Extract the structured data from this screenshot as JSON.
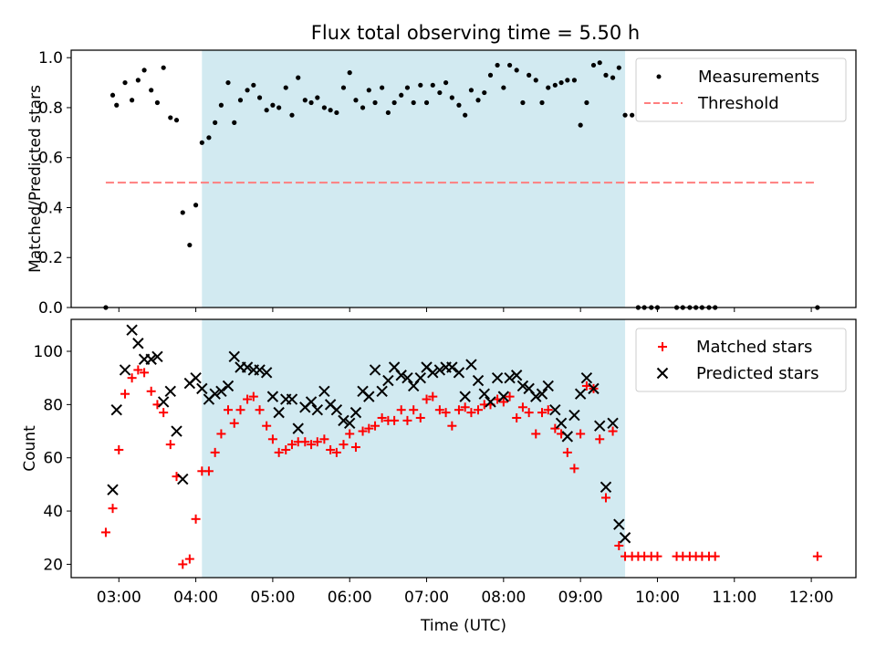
{
  "figure_title": "Flux total observing time = 5.50 h",
  "colors": {
    "shade": "#add8e6",
    "matched": "#ff0000",
    "predicted": "#000000",
    "measurements": "#000000",
    "threshold": "#ff7f7f"
  },
  "chart_data": [
    {
      "type": "scatter",
      "title": "Flux total observing time = 5.50 h",
      "xlabel": "",
      "ylabel": "Matched/Predicted stars",
      "xlim": [
        2.38,
        12.58
      ],
      "ylim": [
        0.0,
        1.03
      ],
      "yticks": [
        0.0,
        0.2,
        0.4,
        0.6,
        0.8,
        1.0
      ],
      "ytick_labels": [
        "0.0",
        "0.2",
        "0.4",
        "0.6",
        "0.8",
        "1.0"
      ],
      "xticks": [
        3,
        4,
        5,
        6,
        7,
        8,
        9,
        10,
        11,
        12
      ],
      "shaded_x_range": [
        4.08,
        9.58
      ],
      "legend_position": "top-right",
      "legend": [
        {
          "label": "Measurements",
          "marker": "dot"
        },
        {
          "label": "Threshold",
          "marker": "dashed-line"
        }
      ],
      "threshold": {
        "name": "Threshold",
        "y": 0.5,
        "x_range": [
          2.83,
          12.08
        ]
      },
      "series": [
        {
          "name": "Measurements",
          "x": [
            2.83,
            2.92,
            2.97,
            3.08,
            3.17,
            3.25,
            3.33,
            3.42,
            3.5,
            3.58,
            3.67,
            3.75,
            3.83,
            3.92,
            4.0,
            4.08,
            4.17,
            4.25,
            4.33,
            4.42,
            4.5,
            4.58,
            4.67,
            4.75,
            4.83,
            4.92,
            5.0,
            5.08,
            5.17,
            5.25,
            5.33,
            5.42,
            5.5,
            5.58,
            5.67,
            5.75,
            5.83,
            5.92,
            6.0,
            6.08,
            6.17,
            6.25,
            6.33,
            6.42,
            6.5,
            6.58,
            6.67,
            6.75,
            6.83,
            6.92,
            7.0,
            7.08,
            7.17,
            7.25,
            7.33,
            7.42,
            7.5,
            7.58,
            7.67,
            7.75,
            7.83,
            7.92,
            8.0,
            8.08,
            8.17,
            8.25,
            8.33,
            8.42,
            8.5,
            8.58,
            8.67,
            8.75,
            8.83,
            8.92,
            9.0,
            9.08,
            9.17,
            9.25,
            9.33,
            9.42,
            9.5,
            9.58,
            9.67,
            9.75,
            9.83,
            9.92,
            10.0,
            10.25,
            10.33,
            10.42,
            10.5,
            10.58,
            10.67,
            10.75,
            12.08
          ],
          "y": [
            0.0,
            0.85,
            0.81,
            0.9,
            0.83,
            0.91,
            0.95,
            0.87,
            0.82,
            0.96,
            0.76,
            0.75,
            0.38,
            0.25,
            0.41,
            0.66,
            0.68,
            0.74,
            0.81,
            0.9,
            0.74,
            0.83,
            0.87,
            0.89,
            0.84,
            0.79,
            0.81,
            0.8,
            0.88,
            0.77,
            0.92,
            0.83,
            0.82,
            0.84,
            0.8,
            0.79,
            0.78,
            0.88,
            0.94,
            0.83,
            0.8,
            0.87,
            0.82,
            0.88,
            0.78,
            0.82,
            0.85,
            0.88,
            0.82,
            0.89,
            0.82,
            0.89,
            0.86,
            0.9,
            0.84,
            0.81,
            0.77,
            0.87,
            0.83,
            0.86,
            0.93,
            0.97,
            0.88,
            0.97,
            0.95,
            0.82,
            0.93,
            0.91,
            0.82,
            0.88,
            0.89,
            0.9,
            0.91,
            0.91,
            0.73,
            0.82,
            0.97,
            0.98,
            0.93,
            0.92,
            0.96,
            0.77,
            0.77,
            0.0,
            0.0,
            0.0,
            0.0,
            0.0,
            0.0,
            0.0,
            0.0,
            0.0,
            0.0,
            0.0,
            0.0
          ]
        }
      ]
    },
    {
      "type": "scatter",
      "title": "",
      "xlabel": "Time (UTC)",
      "ylabel": "Count",
      "xlim": [
        2.38,
        12.58
      ],
      "ylim": [
        15,
        112
      ],
      "yticks": [
        20,
        40,
        60,
        80,
        100
      ],
      "ytick_labels": [
        "20",
        "40",
        "60",
        "80",
        "100"
      ],
      "xticks": [
        3,
        4,
        5,
        6,
        7,
        8,
        9,
        10,
        11,
        12
      ],
      "xtick_labels": [
        "03:00",
        "04:00",
        "05:00",
        "06:00",
        "07:00",
        "08:00",
        "09:00",
        "10:00",
        "11:00",
        "12:00"
      ],
      "shaded_x_range": [
        4.08,
        9.58
      ],
      "legend_position": "top-right",
      "legend": [
        {
          "label": "Matched stars",
          "marker": "plus"
        },
        {
          "label": "Predicted stars",
          "marker": "x"
        }
      ],
      "series": [
        {
          "name": "Matched stars",
          "x": [
            2.83,
            2.92,
            3.0,
            3.08,
            3.17,
            3.25,
            3.33,
            3.42,
            3.5,
            3.58,
            3.67,
            3.75,
            3.83,
            3.92,
            4.0,
            4.08,
            4.17,
            4.25,
            4.33,
            4.42,
            4.5,
            4.58,
            4.67,
            4.75,
            4.83,
            4.92,
            5.0,
            5.08,
            5.17,
            5.25,
            5.33,
            5.42,
            5.5,
            5.58,
            5.67,
            5.75,
            5.83,
            5.92,
            6.0,
            6.08,
            6.17,
            6.25,
            6.33,
            6.42,
            6.5,
            6.58,
            6.67,
            6.75,
            6.83,
            6.92,
            7.0,
            7.08,
            7.17,
            7.25,
            7.33,
            7.42,
            7.5,
            7.58,
            7.67,
            7.75,
            7.83,
            7.92,
            8.0,
            8.08,
            8.17,
            8.25,
            8.33,
            8.42,
            8.5,
            8.58,
            8.67,
            8.75,
            8.83,
            8.92,
            9.0,
            9.08,
            9.17,
            9.25,
            9.33,
            9.42,
            9.5,
            9.58,
            9.67,
            9.75,
            9.83,
            9.92,
            10.0,
            10.25,
            10.33,
            10.42,
            10.5,
            10.58,
            10.67,
            10.75,
            12.08
          ],
          "y": [
            32,
            41,
            63,
            84,
            90,
            93,
            92,
            85,
            80,
            77,
            65,
            53,
            20,
            22,
            37,
            55,
            55,
            62,
            69,
            78,
            73,
            78,
            82,
            83,
            78,
            72,
            67,
            62,
            63,
            65,
            66,
            66,
            65,
            66,
            67,
            63,
            62,
            65,
            69,
            64,
            70,
            71,
            72,
            75,
            74,
            74,
            78,
            74,
            78,
            75,
            82,
            83,
            78,
            77,
            72,
            78,
            79,
            77,
            78,
            80,
            80,
            82,
            81,
            83,
            75,
            79,
            77,
            69,
            77,
            78,
            71,
            69,
            62,
            56,
            69,
            87,
            86,
            67,
            45,
            70,
            27,
            23,
            23,
            23,
            23,
            23,
            23,
            23,
            23,
            23,
            23,
            23,
            23,
            23,
            23
          ]
        },
        {
          "name": "Predicted stars",
          "x": [
            2.92,
            2.97,
            3.08,
            3.17,
            3.25,
            3.33,
            3.42,
            3.5,
            3.58,
            3.67,
            3.75,
            3.83,
            3.92,
            4.0,
            4.08,
            4.17,
            4.25,
            4.33,
            4.42,
            4.5,
            4.58,
            4.67,
            4.75,
            4.83,
            4.92,
            5.0,
            5.08,
            5.17,
            5.25,
            5.33,
            5.42,
            5.5,
            5.58,
            5.67,
            5.75,
            5.83,
            5.92,
            6.0,
            6.08,
            6.17,
            6.25,
            6.33,
            6.42,
            6.5,
            6.58,
            6.67,
            6.75,
            6.83,
            6.92,
            7.0,
            7.08,
            7.17,
            7.25,
            7.33,
            7.42,
            7.5,
            7.58,
            7.67,
            7.75,
            7.83,
            7.92,
            8.0,
            8.08,
            8.17,
            8.25,
            8.33,
            8.42,
            8.5,
            8.58,
            8.67,
            8.75,
            8.83,
            8.92,
            9.0,
            9.08,
            9.17,
            9.25,
            9.33,
            9.42,
            9.5,
            9.58
          ],
          "y": [
            48,
            78,
            93,
            108,
            103,
            97,
            97,
            98,
            81,
            85,
            70,
            52,
            88,
            90,
            86,
            82,
            84,
            85,
            87,
            98,
            94,
            94,
            93,
            93,
            92,
            83,
            77,
            82,
            82,
            71,
            79,
            81,
            78,
            85,
            80,
            78,
            74,
            73,
            77,
            85,
            83,
            93,
            85,
            89,
            94,
            91,
            90,
            87,
            90,
            94,
            92,
            93,
            94,
            94,
            92,
            83,
            95,
            89,
            84,
            81,
            90,
            83,
            90,
            91,
            87,
            86,
            83,
            84,
            87,
            78,
            73,
            68,
            76,
            84,
            90,
            86,
            72,
            49,
            73,
            35,
            30
          ]
        }
      ]
    }
  ]
}
